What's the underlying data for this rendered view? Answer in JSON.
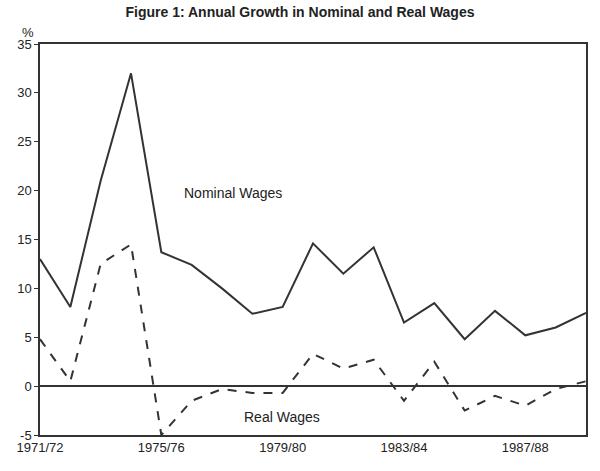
{
  "chart_data": {
    "type": "line",
    "title": "Figure 1: Annual Growth in Nominal and Real Wages",
    "y_label": "%",
    "categories": [
      "1971/72",
      null,
      null,
      null,
      "1975/76",
      null,
      null,
      null,
      "1979/80",
      null,
      null,
      null,
      "1983/84",
      null,
      null,
      null,
      "1987/88",
      null,
      null
    ],
    "series": [
      {
        "name": "Nominal Wages",
        "color": "#333333",
        "line_style": "solid",
        "values": [
          13,
          8.1,
          21,
          32,
          13.7,
          12.4,
          10,
          7.4,
          8.1,
          14.6,
          11.5,
          14.2,
          6.5,
          8.5,
          4.8,
          7.7,
          5.2,
          6,
          7.5
        ]
      },
      {
        "name": "Real Wages",
        "color": "#333333",
        "line_style": "dashed",
        "values": [
          4.8,
          0.5,
          12.5,
          14.5,
          -5,
          -1.5,
          -0.3,
          -0.7,
          -0.7,
          3.3,
          1.8,
          2.7,
          -1.5,
          2.5,
          -2.5,
          -1,
          -2,
          -0.3,
          0.5
        ]
      }
    ],
    "ylim": [
      -5,
      35
    ],
    "yticks": [
      -5,
      0,
      5,
      10,
      15,
      20,
      25,
      30,
      35
    ],
    "grid": false
  }
}
